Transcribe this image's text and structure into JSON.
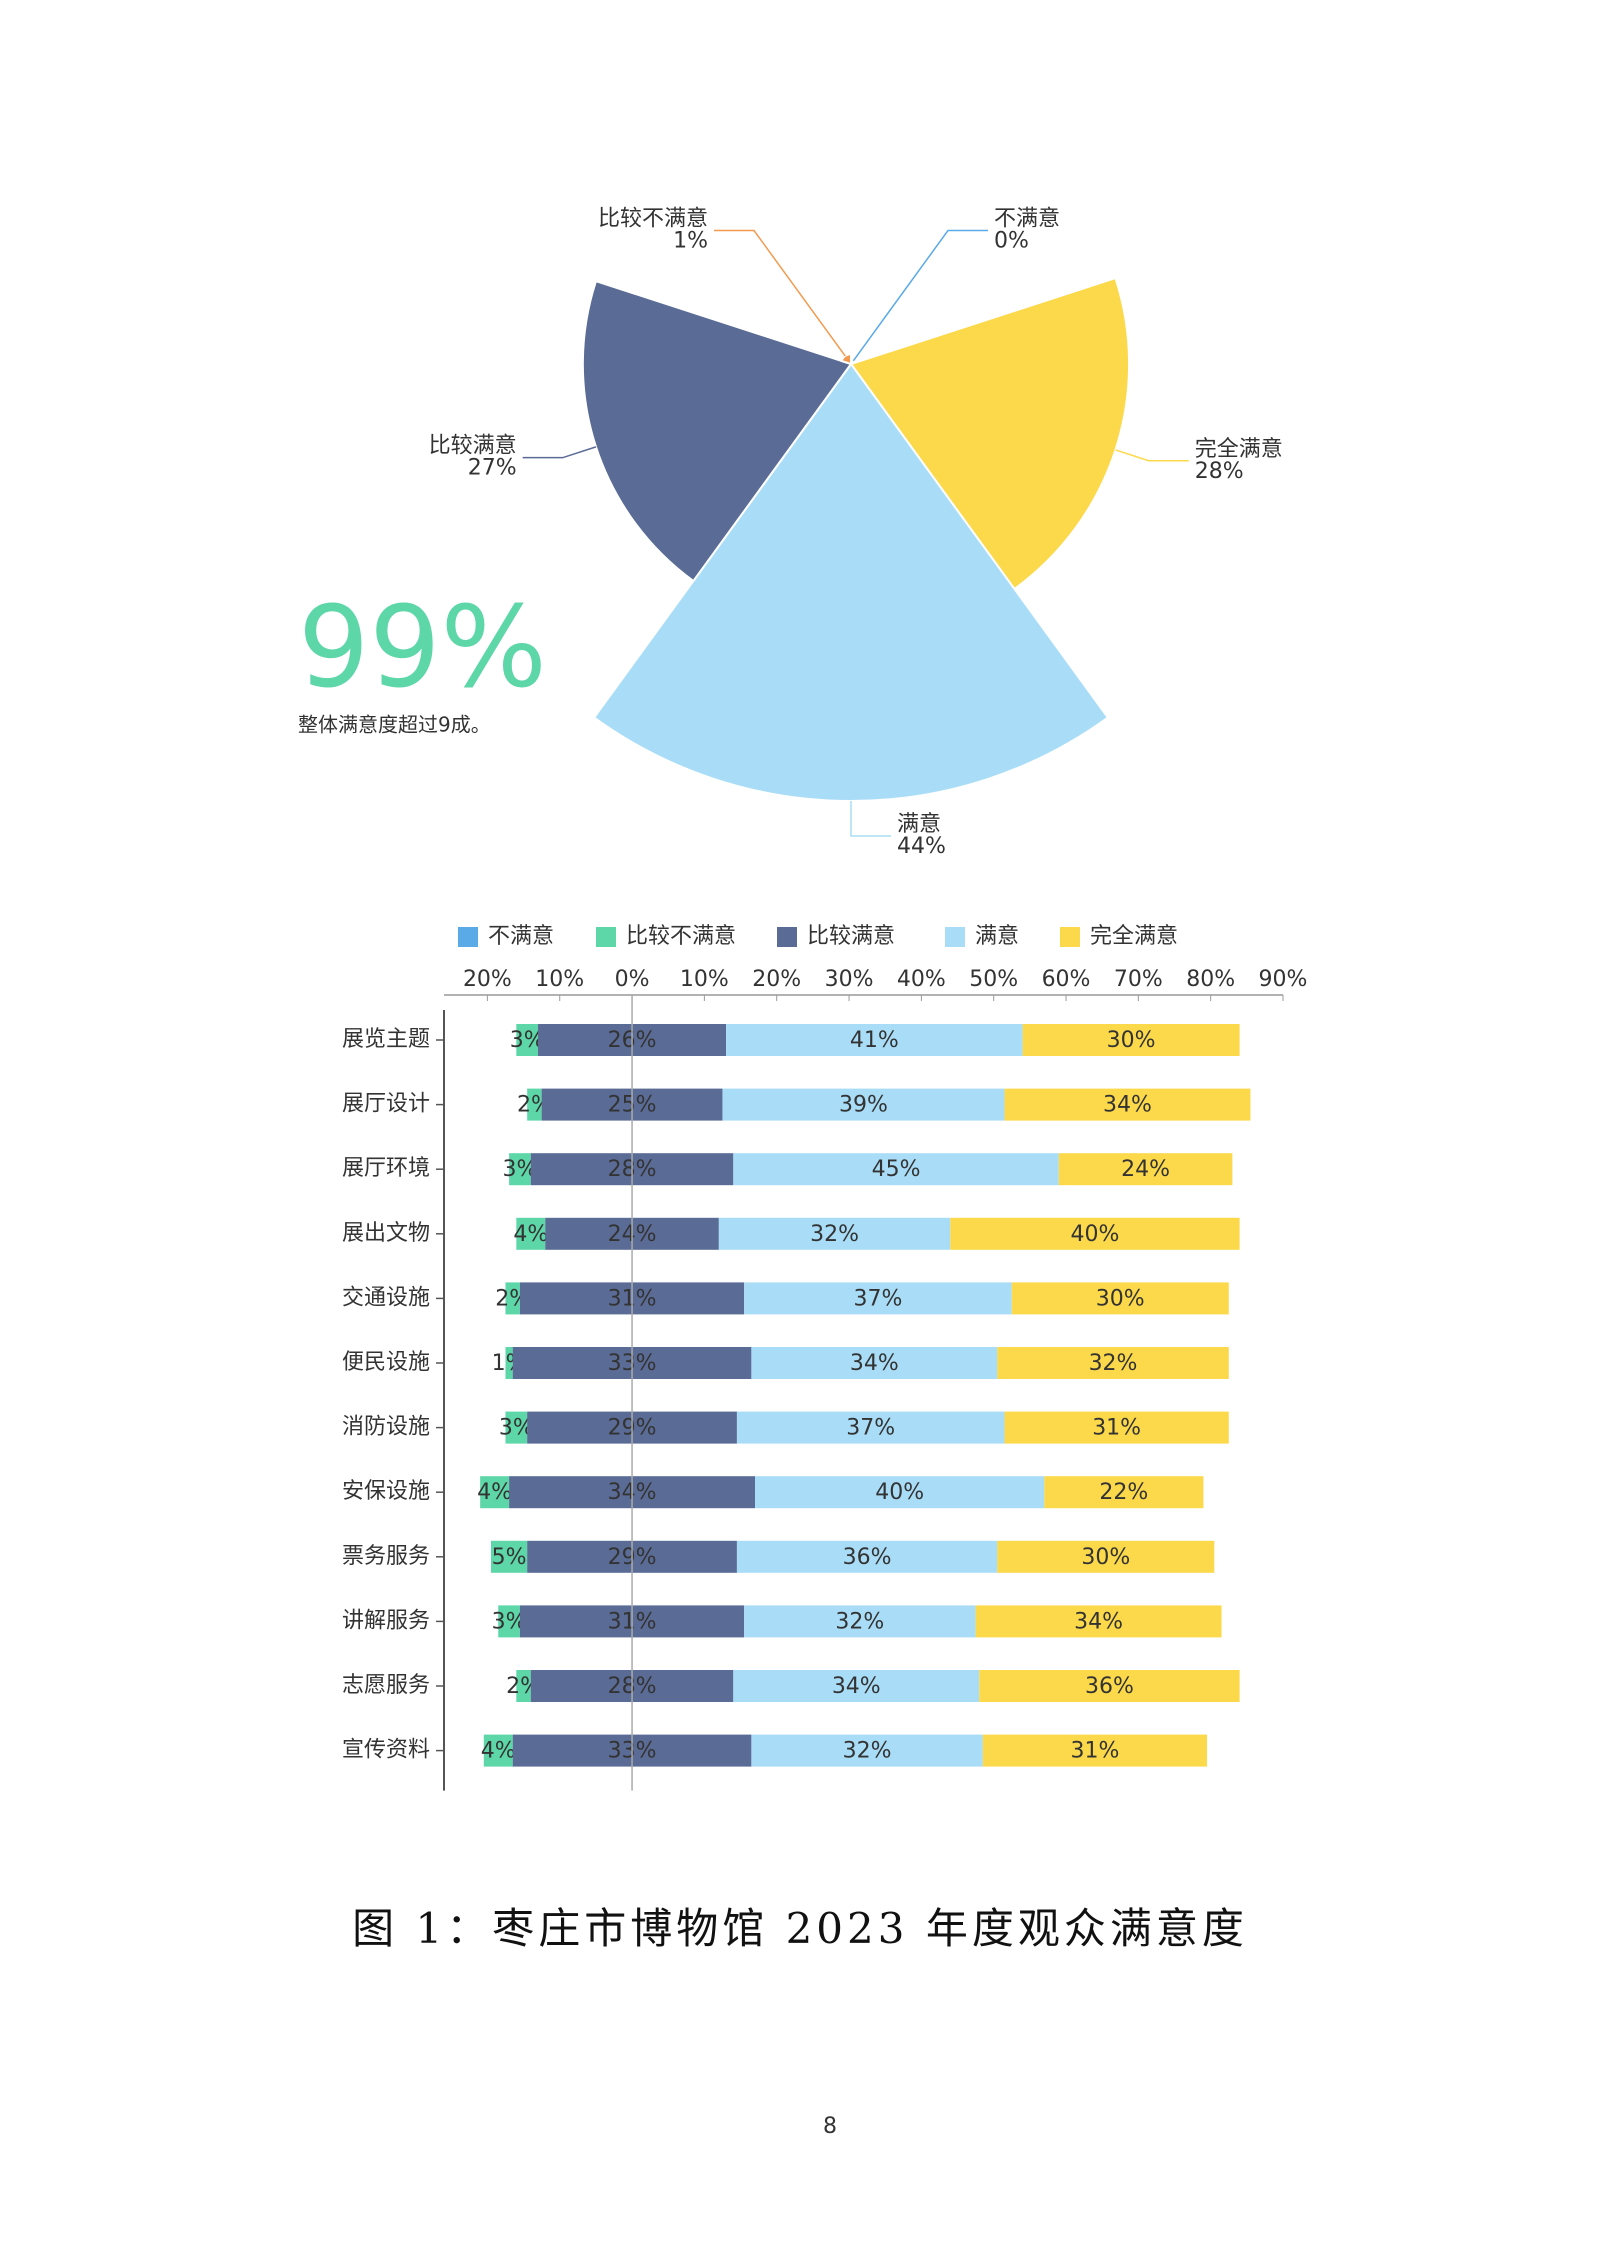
{
  "chart_data": [
    {
      "type": "pie",
      "rose": true,
      "categories": [
        "不满意",
        "完全满意",
        "满意",
        "比较满意",
        "比较不满意"
      ],
      "values": [
        0,
        28,
        44,
        27,
        1
      ],
      "value_labels": [
        "0%",
        "28%",
        "44%",
        "27%",
        "1%"
      ],
      "colors": [
        "#5aaae8",
        "#fcd94a",
        "#a9ddf7",
        "#5a6b96",
        "#f39a4f"
      ],
      "highlight": "99%",
      "note": "整体满意度超过9成。"
    },
    {
      "type": "bar",
      "orientation": "horizontal",
      "center_series": 2,
      "categories": [
        "展览主题",
        "展厅设计",
        "展厅环境",
        "展出文物",
        "交通设施",
        "便民设施",
        "消防设施",
        "安保设施",
        "票务服务",
        "讲解服务",
        "志愿服务",
        "宣传资料"
      ],
      "series": [
        {
          "name": "不满意",
          "color": "#5aaae8",
          "values": [
            0,
            0,
            0,
            0,
            0,
            0,
            0,
            0,
            0,
            0,
            0,
            0
          ]
        },
        {
          "name": "比较不满意",
          "color": "#5dd6a8",
          "values": [
            3,
            2,
            3,
            4,
            2,
            1,
            3,
            4,
            5,
            3,
            2,
            4
          ],
          "value_labels": [
            "3%",
            "2%",
            "3%",
            "4%",
            "2%",
            "1%",
            "3%",
            "4%",
            "5%",
            "3%",
            "2%",
            "4%"
          ]
        },
        {
          "name": "比较满意",
          "color": "#5a6b96",
          "values": [
            26,
            25,
            28,
            24,
            31,
            33,
            29,
            34,
            29,
            31,
            28,
            33
          ],
          "value_labels": [
            "26%",
            "25%",
            "28%",
            "24%",
            "31%",
            "33%",
            "29%",
            "34%",
            "29%",
            "31%",
            "28%",
            "33%"
          ]
        },
        {
          "name": "满意",
          "color": "#a9ddf7",
          "values": [
            41,
            39,
            45,
            32,
            37,
            34,
            37,
            40,
            36,
            32,
            34,
            32
          ],
          "value_labels": [
            "41%",
            "39%",
            "45%",
            "32%",
            "37%",
            "34%",
            "37%",
            "40%",
            "36%",
            "32%",
            "34%",
            "32%"
          ]
        },
        {
          "name": "完全满意",
          "color": "#fcd94a",
          "values": [
            30,
            34,
            24,
            40,
            30,
            32,
            31,
            22,
            30,
            34,
            36,
            31
          ],
          "value_labels": [
            "30%",
            "34%",
            "24%",
            "40%",
            "30%",
            "32%",
            "31%",
            "22%",
            "30%",
            "34%",
            "36%",
            "31%"
          ]
        }
      ],
      "xlim": [
        -26,
        90
      ],
      "xticks": [
        {
          "value": -20,
          "label": "20%"
        },
        {
          "value": -10,
          "label": "10%"
        },
        {
          "value": 0,
          "label": "0%"
        },
        {
          "value": 10,
          "label": "10%"
        },
        {
          "value": 20,
          "label": "20%"
        },
        {
          "value": 30,
          "label": "30%"
        },
        {
          "value": 40,
          "label": "40%"
        },
        {
          "value": 50,
          "label": "50%"
        },
        {
          "value": 60,
          "label": "60%"
        },
        {
          "value": 70,
          "label": "70%"
        },
        {
          "value": 80,
          "label": "80%"
        },
        {
          "value": 90,
          "label": "90%"
        }
      ],
      "legend": "top"
    }
  ],
  "caption": "图 1：枣庄市博物馆 2023 年度观众满意度",
  "page_number": "8"
}
